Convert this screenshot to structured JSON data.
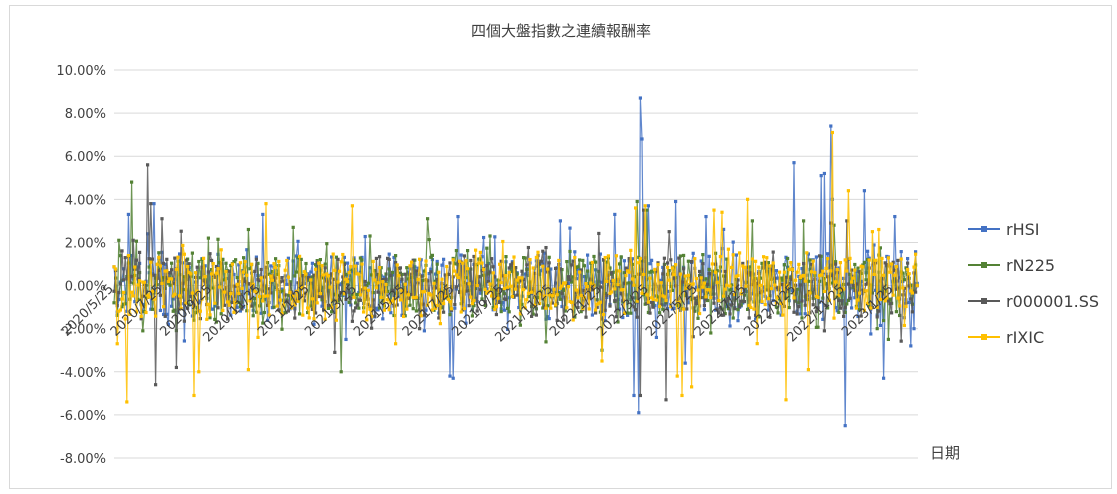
{
  "chart_data": {
    "type": "line",
    "title": "四個大盤指數之連續報酬率",
    "xlabel": "日期",
    "ylabel": "",
    "ylim": [
      -0.08,
      0.1
    ],
    "yticks": [
      0.1,
      0.08,
      0.06,
      0.04,
      0.02,
      0.0,
      -0.02,
      -0.04,
      -0.06,
      -0.08
    ],
    "ytick_labels": [
      "10.00%",
      "8.00%",
      "6.00%",
      "4.00%",
      "2.00%",
      "0.00%",
      "-2.00%",
      "-4.00%",
      "-6.00%",
      "-8.00%"
    ],
    "x_range": [
      "2020/5/25",
      "2023/2/24"
    ],
    "x_tick_dates": [
      "2020/5/25",
      "2020/7/25",
      "2020/9/25",
      "2020/11/25",
      "2021/1/25",
      "2021/3/25",
      "2021/5/25",
      "2021/7/25",
      "2021/9/25",
      "2021/11/25",
      "2022/1/25",
      "2022/3/25",
      "2022/5/25",
      "2022/7/25",
      "2022/9/25",
      "2022/11/25",
      "2023/1/25"
    ],
    "x_tick_labels": [
      "2020/5/25",
      "2020/7/25",
      "2020/9/25",
      "2020/11/25",
      "2021/1/25",
      "2021/3/25",
      "2021/5/25",
      "2021/7/25",
      "2021/9/25",
      "2021/11/25",
      "2022/1/25",
      "2022/3/25",
      "2022/5/25",
      "2022/7/25",
      "2022/9/25",
      "2022/11/25",
      "2023/1/25"
    ],
    "grid": true,
    "legend_position": "right",
    "series": [
      {
        "name": "rHSI",
        "color": "#4472c4",
        "points": [
          [
            "2020/6/12",
            0.033
          ],
          [
            "2020/7/6",
            0.024
          ],
          [
            "2020/7/14",
            0.038
          ],
          [
            "2020/8/1",
            -0.018
          ],
          [
            "2020/11/28",
            0.033
          ],
          [
            "2021/1/30",
            -0.018
          ],
          [
            "2021/3/12",
            -0.025
          ],
          [
            "2021/6/18",
            -0.021
          ],
          [
            "2021/7/20",
            -0.042
          ],
          [
            "2021/7/23",
            -0.043
          ],
          [
            "2021/7/30",
            0.032
          ],
          [
            "2021/12/5",
            0.03
          ],
          [
            "2022/2/10",
            0.033
          ],
          [
            "2022/3/7",
            -0.051
          ],
          [
            "2022/3/12",
            -0.059
          ],
          [
            "2022/3/15",
            0.087
          ],
          [
            "2022/3/16",
            0.068
          ],
          [
            "2022/3/25",
            0.037
          ],
          [
            "2022/4/28",
            0.039
          ],
          [
            "2022/5/10",
            -0.036
          ],
          [
            "2022/6/5",
            0.032
          ],
          [
            "2022/9/23",
            0.057
          ],
          [
            "2022/10/27",
            0.051
          ],
          [
            "2022/10/31",
            0.052
          ],
          [
            "2022/11/8",
            0.074
          ],
          [
            "2022/11/10",
            0.04
          ],
          [
            "2022/11/25",
            -0.065
          ],
          [
            "2022/12/20",
            0.044
          ],
          [
            "2023/1/13",
            -0.043
          ],
          [
            "2023/1/27",
            0.032
          ],
          [
            "2023/2/15",
            -0.028
          ],
          [
            "2023/2/20",
            -0.02
          ],
          [
            "2023/2/24",
            0.001
          ]
        ]
      },
      {
        "name": "rN225",
        "color": "#548235",
        "points": [
          [
            "2020/6/1",
            0.021
          ],
          [
            "2020/6/16",
            0.048
          ],
          [
            "2020/7/1",
            -0.021
          ],
          [
            "2020/9/20",
            0.022
          ],
          [
            "2020/11/10",
            0.026
          ],
          [
            "2021/1/5",
            0.027
          ],
          [
            "2021/3/5",
            -0.04
          ],
          [
            "2021/4/10",
            0.023
          ],
          [
            "2021/6/21",
            0.031
          ],
          [
            "2021/9/8",
            0.023
          ],
          [
            "2022/1/25",
            -0.03
          ],
          [
            "2022/3/10",
            0.039
          ],
          [
            "2022/3/22",
            0.035
          ],
          [
            "2022/6/10",
            -0.022
          ],
          [
            "2022/8/2",
            0.03
          ],
          [
            "2022/10/5",
            0.03
          ],
          [
            "2022/11/12",
            0.028
          ],
          [
            "2023/1/5",
            -0.02
          ],
          [
            "2023/2/24",
            0.0
          ]
        ]
      },
      {
        "name": "r000001.SS",
        "color": "#595959",
        "points": [
          [
            "2020/6/18",
            0.021
          ],
          [
            "2020/7/6",
            0.056
          ],
          [
            "2020/7/10",
            0.038
          ],
          [
            "2020/7/16",
            -0.046
          ],
          [
            "2020/8/12",
            -0.038
          ],
          [
            "2020/7/25",
            0.031
          ],
          [
            "2021/2/26",
            -0.031
          ],
          [
            "2022/3/15",
            -0.051
          ],
          [
            "2022/3/18",
            0.035
          ],
          [
            "2022/4/15",
            -0.053
          ],
          [
            "2022/4/20",
            0.025
          ],
          [
            "2022/10/31",
            -0.021
          ],
          [
            "2022/11/8",
            0.029
          ],
          [
            "2022/11/28",
            0.03
          ],
          [
            "2023/2/24",
            0.0
          ]
        ]
      },
      {
        "name": "rIXIC",
        "color": "#ffc000",
        "points": [
          [
            "2020/5/30",
            -0.027
          ],
          [
            "2020/6/11",
            -0.054
          ],
          [
            "2020/9/3",
            -0.051
          ],
          [
            "2020/9/8",
            -0.04
          ],
          [
            "2020/11/10",
            -0.039
          ],
          [
            "2020/12/1",
            0.038
          ],
          [
            "2021/3/19",
            0.037
          ],
          [
            "2021/5/12",
            -0.027
          ],
          [
            "2022/1/25",
            -0.035
          ],
          [
            "2022/3/9",
            0.036
          ],
          [
            "2022/3/20",
            0.037
          ],
          [
            "2022/4/29",
            -0.042
          ],
          [
            "2022/5/5",
            -0.051
          ],
          [
            "2022/5/18",
            -0.047
          ],
          [
            "2022/6/14",
            0.035
          ],
          [
            "2022/6/25",
            0.034
          ],
          [
            "2022/7/27",
            0.04
          ],
          [
            "2022/9/13",
            -0.053
          ],
          [
            "2022/10/11",
            -0.039
          ],
          [
            "2022/11/10",
            0.071
          ],
          [
            "2022/11/30",
            0.044
          ],
          [
            "2022/12/29",
            0.025
          ],
          [
            "2023/1/6",
            0.026
          ],
          [
            "2023/2/24",
            0.0
          ]
        ]
      }
    ]
  }
}
